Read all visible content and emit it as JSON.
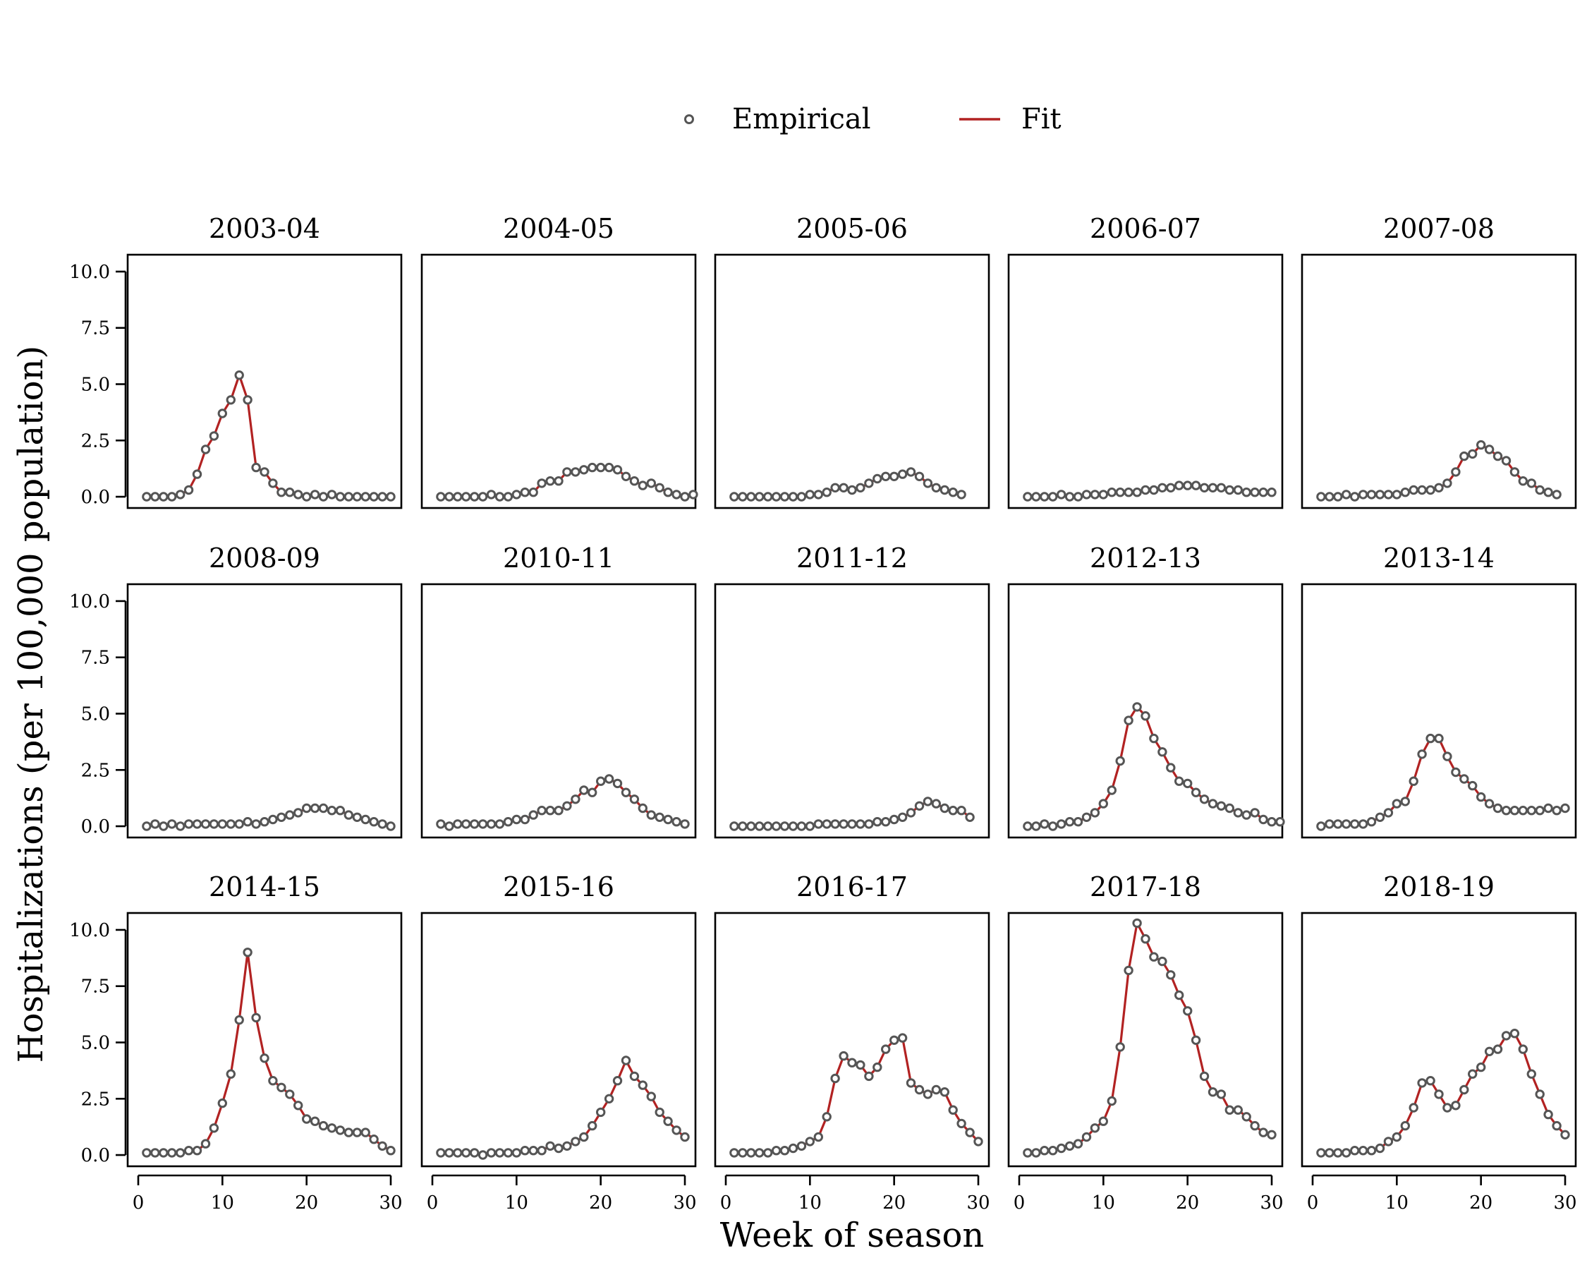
{
  "chart_data": {
    "type": "line",
    "xlabel": "Week of season",
    "ylabel": "Hospitalizations (per 100,000 population)",
    "legend": {
      "position": "top-center",
      "items": [
        {
          "label": "Empirical",
          "marker": "open-circle",
          "color": "#555555"
        },
        {
          "label": "Fit",
          "marker": "line",
          "color": "#b22222"
        }
      ]
    },
    "x_ticks": [
      "0",
      "10",
      "20",
      "30"
    ],
    "xlim": [
      0,
      30
    ],
    "y_ticks": [
      "0.0",
      "2.5",
      "5.0",
      "7.5",
      "10.0"
    ],
    "ylim": [
      -0.5,
      10.75
    ],
    "grid": false,
    "layout": "3x5 facets, shared axes",
    "panels": [
      {
        "title": "2003-04",
        "x_start": 1,
        "values": [
          0,
          0,
          0,
          0,
          0.1,
          0.3,
          1.0,
          2.1,
          2.7,
          3.7,
          4.3,
          5.4,
          4.3,
          1.3,
          1.1,
          0.6,
          0.2,
          0.2,
          0.1,
          0,
          0.1,
          0,
          0.1,
          0,
          0,
          0,
          0,
          0,
          0,
          0
        ]
      },
      {
        "title": "2004-05",
        "x_start": 1,
        "values": [
          0,
          0,
          0,
          0,
          0,
          0,
          0.1,
          0,
          0,
          0.1,
          0.2,
          0.2,
          0.6,
          0.7,
          0.7,
          1.1,
          1.1,
          1.2,
          1.3,
          1.3,
          1.3,
          1.2,
          0.9,
          0.7,
          0.5,
          0.6,
          0.4,
          0.2,
          0.1,
          0,
          0.1
        ]
      },
      {
        "title": "2005-06",
        "x_start": 1,
        "values": [
          0,
          0,
          0,
          0,
          0,
          0,
          0,
          0,
          0,
          0.1,
          0.1,
          0.2,
          0.4,
          0.4,
          0.3,
          0.4,
          0.6,
          0.8,
          0.9,
          0.9,
          1.0,
          1.1,
          0.9,
          0.6,
          0.4,
          0.3,
          0.2,
          0.1
        ]
      },
      {
        "title": "2006-07",
        "x_start": 1,
        "values": [
          0,
          0,
          0,
          0,
          0.1,
          0,
          0,
          0.1,
          0.1,
          0.1,
          0.2,
          0.2,
          0.2,
          0.2,
          0.3,
          0.3,
          0.4,
          0.4,
          0.5,
          0.5,
          0.5,
          0.4,
          0.4,
          0.4,
          0.3,
          0.3,
          0.2,
          0.2,
          0.2,
          0.2
        ]
      },
      {
        "title": "2007-08",
        "x_start": 1,
        "values": [
          0,
          0,
          0,
          0.1,
          0,
          0.1,
          0.1,
          0.1,
          0.1,
          0.1,
          0.2,
          0.3,
          0.3,
          0.3,
          0.4,
          0.6,
          1.1,
          1.8,
          1.9,
          2.3,
          2.1,
          1.8,
          1.6,
          1.1,
          0.7,
          0.6,
          0.3,
          0.2,
          0.1
        ]
      },
      {
        "title": "2008-09",
        "x_start": 1,
        "values": [
          0,
          0.1,
          0,
          0.1,
          0,
          0.1,
          0.1,
          0.1,
          0.1,
          0.1,
          0.1,
          0.1,
          0.2,
          0.1,
          0.2,
          0.3,
          0.4,
          0.5,
          0.6,
          0.8,
          0.8,
          0.8,
          0.7,
          0.7,
          0.5,
          0.4,
          0.3,
          0.2,
          0.1,
          0
        ]
      },
      {
        "title": "2010-11",
        "x_start": 1,
        "values": [
          0.1,
          0,
          0.1,
          0.1,
          0.1,
          0.1,
          0.1,
          0.1,
          0.2,
          0.3,
          0.3,
          0.5,
          0.7,
          0.7,
          0.7,
          0.9,
          1.2,
          1.6,
          1.5,
          2.0,
          2.1,
          1.9,
          1.5,
          1.2,
          0.8,
          0.5,
          0.4,
          0.3,
          0.2,
          0.1
        ]
      },
      {
        "title": "2011-12",
        "x_start": 1,
        "values": [
          0,
          0,
          0,
          0,
          0,
          0,
          0,
          0,
          0,
          0,
          0.1,
          0.1,
          0.1,
          0.1,
          0.1,
          0.1,
          0.1,
          0.2,
          0.2,
          0.3,
          0.4,
          0.6,
          0.9,
          1.1,
          1.0,
          0.8,
          0.7,
          0.7,
          0.4
        ]
      },
      {
        "title": "2012-13",
        "x_start": 1,
        "values": [
          0,
          0,
          0.1,
          0,
          0.1,
          0.2,
          0.2,
          0.4,
          0.6,
          1.0,
          1.6,
          2.9,
          4.7,
          5.3,
          4.9,
          3.9,
          3.3,
          2.6,
          2.0,
          1.9,
          1.5,
          1.2,
          1.0,
          0.9,
          0.8,
          0.6,
          0.5,
          0.6,
          0.3,
          0.2,
          0.2
        ]
      },
      {
        "title": "2013-14",
        "x_start": 1,
        "values": [
          0,
          0.1,
          0.1,
          0.1,
          0.1,
          0.1,
          0.2,
          0.4,
          0.6,
          1.0,
          1.1,
          2.0,
          3.2,
          3.9,
          3.9,
          3.1,
          2.4,
          2.1,
          1.8,
          1.3,
          1.0,
          0.8,
          0.7,
          0.7,
          0.7,
          0.7,
          0.7,
          0.8,
          0.7,
          0.8
        ]
      },
      {
        "title": "2014-15",
        "x_start": 1,
        "values": [
          0.1,
          0.1,
          0.1,
          0.1,
          0.1,
          0.2,
          0.2,
          0.5,
          1.2,
          2.3,
          3.6,
          6.0,
          9.0,
          6.1,
          4.3,
          3.3,
          3.0,
          2.7,
          2.2,
          1.6,
          1.5,
          1.3,
          1.2,
          1.1,
          1.0,
          1.0,
          1.0,
          0.7,
          0.4,
          0.2
        ]
      },
      {
        "title": "2015-16",
        "x_start": 1,
        "values": [
          0.1,
          0.1,
          0.1,
          0.1,
          0.1,
          0,
          0.1,
          0.1,
          0.1,
          0.1,
          0.2,
          0.2,
          0.2,
          0.4,
          0.3,
          0.4,
          0.6,
          0.8,
          1.3,
          1.9,
          2.5,
          3.3,
          4.2,
          3.5,
          3.1,
          2.6,
          1.9,
          1.5,
          1.1,
          0.8
        ]
      },
      {
        "title": "2016-17",
        "x_start": 1,
        "values": [
          0.1,
          0.1,
          0.1,
          0.1,
          0.1,
          0.2,
          0.2,
          0.3,
          0.4,
          0.6,
          0.8,
          1.7,
          3.4,
          4.4,
          4.1,
          4.0,
          3.5,
          3.9,
          4.7,
          5.1,
          5.2,
          3.2,
          2.9,
          2.7,
          2.9,
          2.8,
          2.0,
          1.4,
          1.0,
          0.6
        ]
      },
      {
        "title": "2017-18",
        "x_start": 1,
        "values": [
          0.1,
          0.1,
          0.2,
          0.2,
          0.3,
          0.4,
          0.5,
          0.8,
          1.2,
          1.5,
          2.4,
          4.8,
          8.2,
          10.3,
          9.6,
          8.8,
          8.6,
          8.0,
          7.1,
          6.4,
          5.1,
          3.5,
          2.8,
          2.7,
          2.0,
          2.0,
          1.7,
          1.3,
          1.0,
          0.9
        ]
      },
      {
        "title": "2018-19",
        "x_start": 1,
        "values": [
          0.1,
          0.1,
          0.1,
          0.1,
          0.2,
          0.2,
          0.2,
          0.3,
          0.6,
          0.8,
          1.3,
          2.1,
          3.2,
          3.3,
          2.7,
          2.1,
          2.2,
          2.9,
          3.6,
          3.9,
          4.6,
          4.7,
          5.3,
          5.4,
          4.7,
          3.6,
          2.7,
          1.8,
          1.3,
          0.9
        ]
      }
    ]
  }
}
